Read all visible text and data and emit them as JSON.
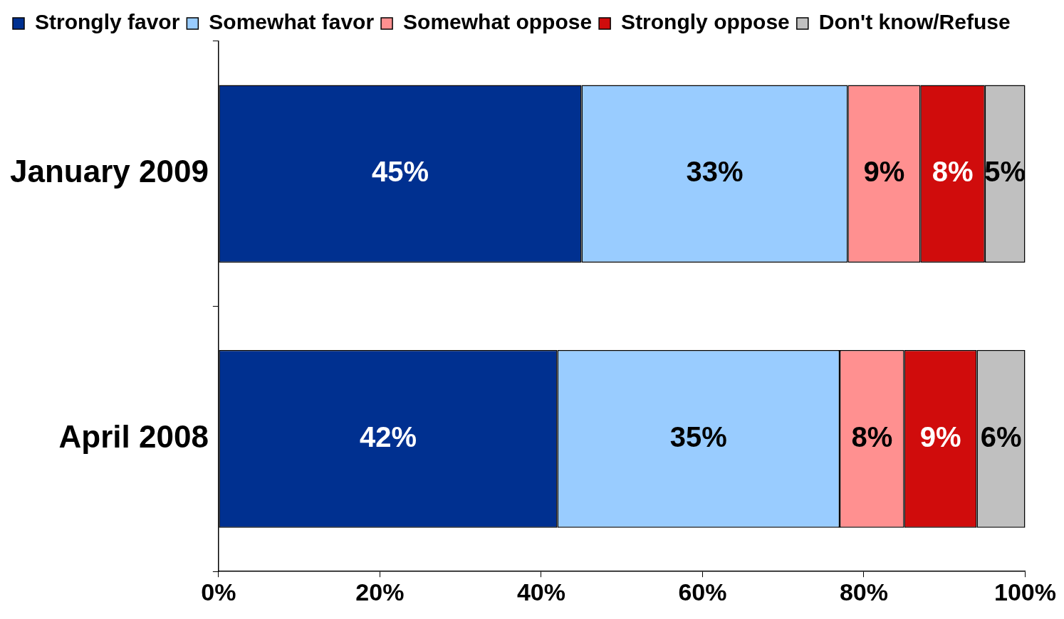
{
  "chart_data": {
    "type": "bar",
    "orientation": "horizontal",
    "stacked": true,
    "legend": "top",
    "grid": false,
    "categories": [
      "January 2009",
      "April 2008"
    ],
    "series": [
      {
        "name": "Strongly favor",
        "color": "#003090",
        "values": [
          45,
          42
        ],
        "value_labels": [
          "45%",
          "42%"
        ]
      },
      {
        "name": "Somewhat favor",
        "color": "#99ccff",
        "values": [
          33,
          35
        ],
        "value_labels": [
          "33%",
          "35%"
        ]
      },
      {
        "name": "Somewhat oppose",
        "color": "#ff9090",
        "values": [
          9,
          8
        ],
        "value_labels": [
          "9%",
          "8%"
        ]
      },
      {
        "name": "Strongly oppose",
        "color": "#d00c0c",
        "values": [
          8,
          9
        ],
        "value_labels": [
          "8%",
          "9%"
        ]
      },
      {
        "name": "Don't know/Refuse",
        "color": "#c0c0c0",
        "values": [
          5,
          6
        ],
        "value_labels": [
          "5%",
          "6%"
        ]
      }
    ],
    "xlim": [
      0,
      100
    ],
    "xticks": [
      {
        "value": 0,
        "label": "0%"
      },
      {
        "value": 20,
        "label": "20%"
      },
      {
        "value": 40,
        "label": "40%"
      },
      {
        "value": 60,
        "label": "60%"
      },
      {
        "value": 80,
        "label": "80%"
      },
      {
        "value": 100,
        "label": "100%"
      }
    ]
  }
}
